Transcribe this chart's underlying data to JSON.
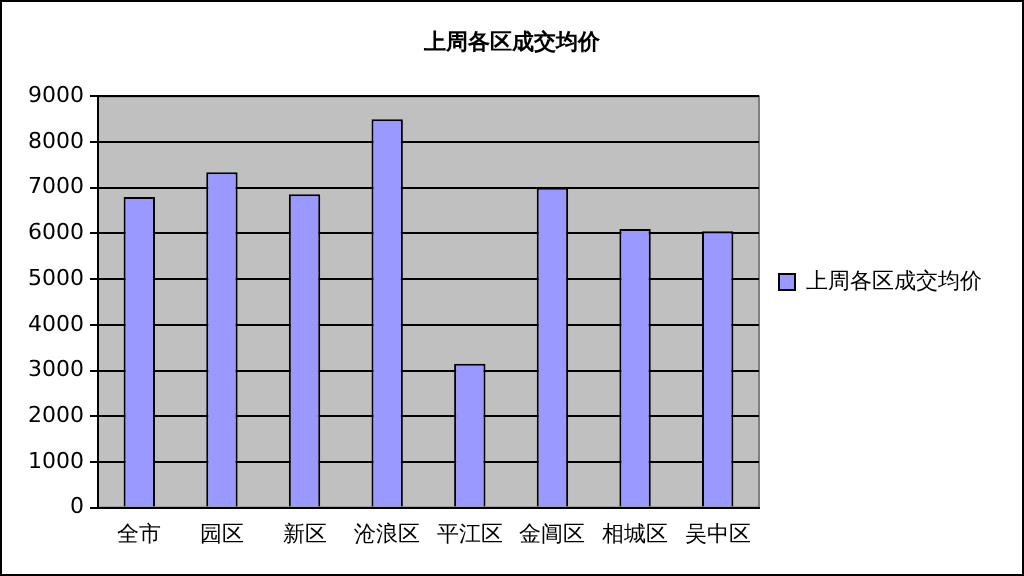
{
  "chart_data": {
    "type": "bar",
    "title": "上周各区成交均价",
    "categories": [
      "全市",
      "园区",
      "新区",
      "沧浪区",
      "平江区",
      "金阊区",
      "相城区",
      "吴中区"
    ],
    "series": [
      {
        "name": "上周各区成交均价",
        "color": "#9999ff",
        "values": [
          6800,
          7340,
          6860,
          8500,
          3150,
          7000,
          6100,
          6050
        ]
      }
    ],
    "ylim": [
      0,
      9000
    ],
    "yticks": [
      0,
      1000,
      2000,
      3000,
      4000,
      5000,
      6000,
      7000,
      8000,
      9000
    ],
    "grid": "y",
    "legend": "right"
  }
}
